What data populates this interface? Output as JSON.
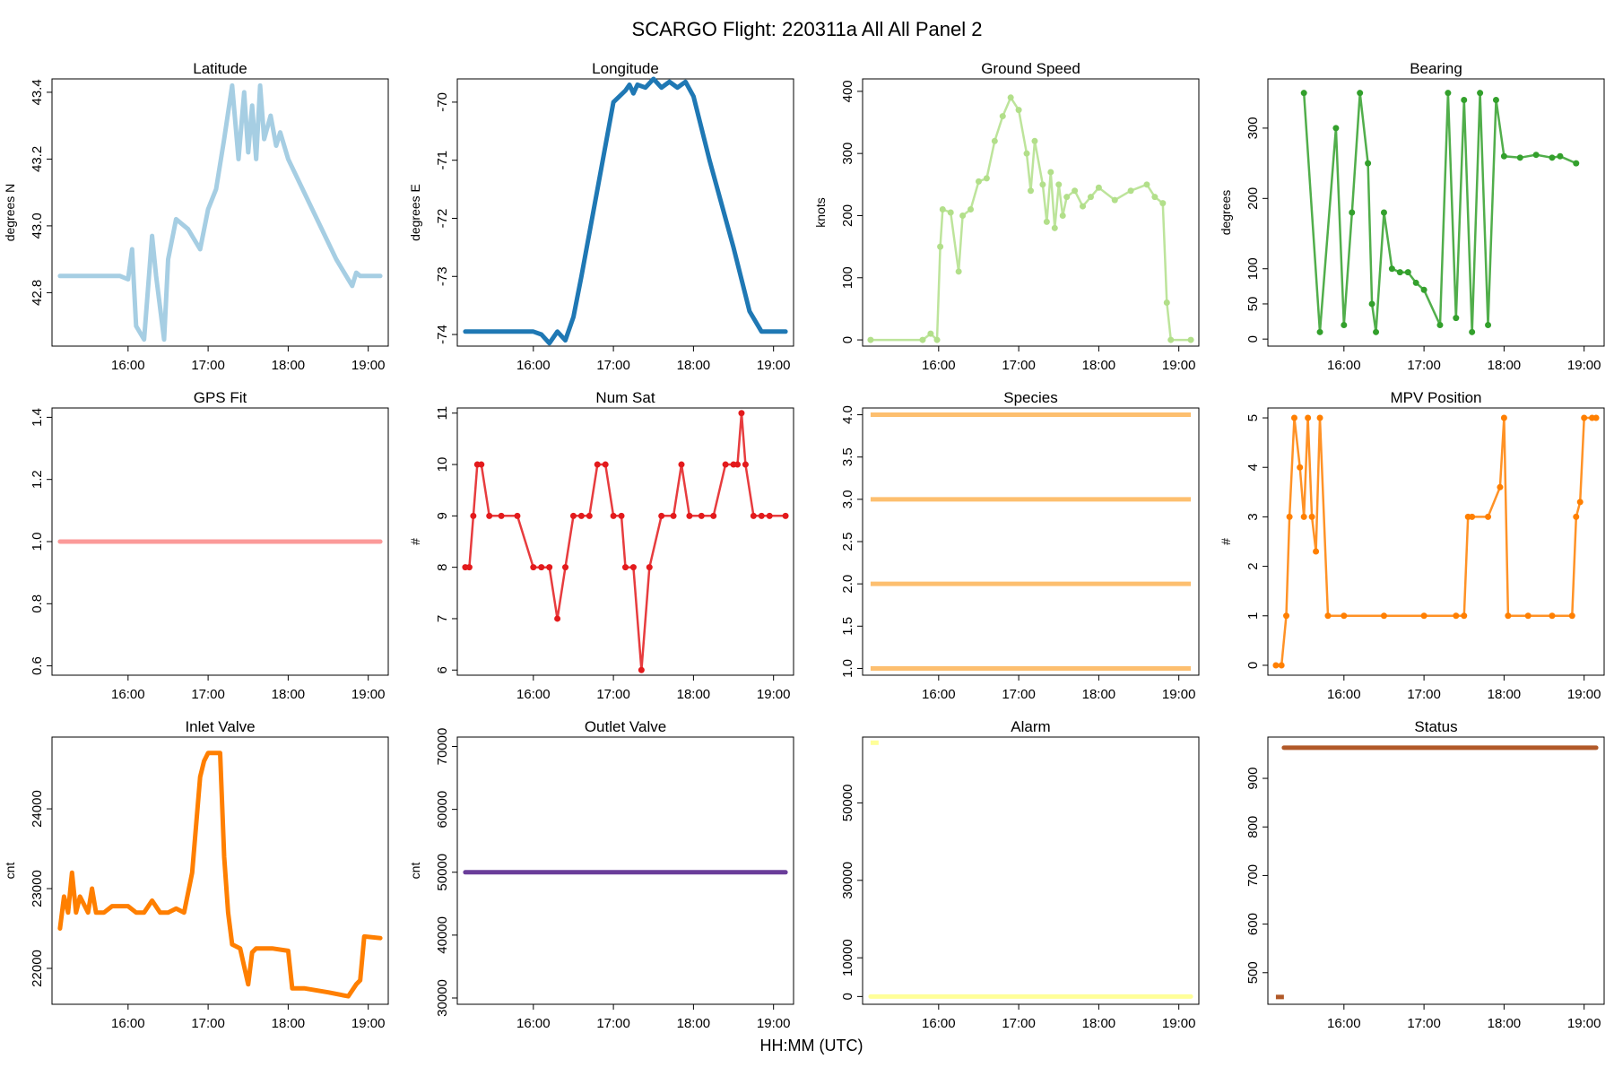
{
  "figure": {
    "title": "SCARGO Flight: 220311a  All All  Panel 2",
    "xlabel": "HH:MM (UTC)"
  },
  "chart_data": [
    {
      "id": "lat",
      "type": "line",
      "title": "Latitude",
      "ylabel": "degrees N",
      "color": "#a6cee3",
      "xlim": [
        15.05,
        19.25
      ],
      "ylim": [
        42.64,
        43.44
      ],
      "yticks": [
        42.8,
        43.0,
        43.2,
        43.4
      ],
      "ytick_labels": [
        "42.8",
        "43.0",
        "43.2",
        "43.4"
      ],
      "xticks": [
        16,
        17,
        18,
        19
      ],
      "xtick_labels": [
        "16:00",
        "17:00",
        "18:00",
        "19:00"
      ],
      "x": [
        15.15,
        15.9,
        16.0,
        16.05,
        16.1,
        16.2,
        16.3,
        16.35,
        16.45,
        16.5,
        16.6,
        16.75,
        16.9,
        17.0,
        17.1,
        17.2,
        17.3,
        17.38,
        17.45,
        17.5,
        17.55,
        17.6,
        17.65,
        17.7,
        17.78,
        17.85,
        17.9,
        18.0,
        18.3,
        18.6,
        18.8,
        18.85,
        18.9,
        19.15
      ],
      "y": [
        42.85,
        42.85,
        42.84,
        42.93,
        42.7,
        42.66,
        42.97,
        42.85,
        42.66,
        42.9,
        43.02,
        42.99,
        42.93,
        43.05,
        43.11,
        43.26,
        43.42,
        43.2,
        43.4,
        43.22,
        43.36,
        43.2,
        43.42,
        43.26,
        43.33,
        43.24,
        43.28,
        43.2,
        43.05,
        42.9,
        42.82,
        42.86,
        42.85,
        42.85
      ]
    },
    {
      "id": "lon",
      "type": "line",
      "title": "Longitude",
      "ylabel": "degrees E",
      "color": "#1f78b4",
      "xlim": [
        15.05,
        19.25
      ],
      "ylim": [
        -74.2,
        -69.6
      ],
      "yticks": [
        -74,
        -73,
        -72,
        -71,
        -70
      ],
      "ytick_labels": [
        "-74",
        "-73",
        "-72",
        "-71",
        "-70"
      ],
      "xticks": [
        16,
        17,
        18,
        19
      ],
      "xtick_labels": [
        "16:00",
        "17:00",
        "18:00",
        "19:00"
      ],
      "x": [
        15.15,
        16.0,
        16.1,
        16.2,
        16.3,
        16.4,
        16.5,
        16.6,
        16.8,
        17.0,
        17.15,
        17.2,
        17.25,
        17.3,
        17.4,
        17.5,
        17.6,
        17.7,
        17.8,
        17.9,
        18.0,
        18.2,
        18.5,
        18.7,
        18.85,
        19.15
      ],
      "y": [
        -73.95,
        -73.95,
        -74.0,
        -74.15,
        -73.95,
        -74.1,
        -73.7,
        -73.0,
        -71.5,
        -70.0,
        -69.8,
        -69.7,
        -69.85,
        -69.7,
        -69.75,
        -69.6,
        -69.75,
        -69.65,
        -69.75,
        -69.65,
        -69.9,
        -71.0,
        -72.5,
        -73.6,
        -73.95,
        -73.95
      ]
    },
    {
      "id": "gs",
      "type": "scatter",
      "title": "Ground Speed",
      "ylabel": "knots",
      "color": "#b2df8a",
      "xlim": [
        15.05,
        19.25
      ],
      "ylim": [
        -10,
        420
      ],
      "yticks": [
        0,
        100,
        200,
        300,
        400
      ],
      "ytick_labels": [
        "0",
        "100",
        "200",
        "300",
        "400"
      ],
      "xticks": [
        16,
        17,
        18,
        19
      ],
      "xtick_labels": [
        "16:00",
        "17:00",
        "18:00",
        "19:00"
      ],
      "x": [
        15.15,
        15.8,
        15.9,
        15.98,
        16.02,
        16.05,
        16.15,
        16.25,
        16.3,
        16.4,
        16.5,
        16.6,
        16.7,
        16.8,
        16.9,
        17.0,
        17.1,
        17.15,
        17.2,
        17.3,
        17.35,
        17.4,
        17.45,
        17.5,
        17.55,
        17.6,
        17.7,
        17.8,
        17.9,
        18.0,
        18.2,
        18.4,
        18.6,
        18.7,
        18.8,
        18.85,
        18.9,
        19.15
      ],
      "y": [
        0,
        0,
        10,
        0,
        150,
        210,
        205,
        110,
        200,
        210,
        255,
        260,
        320,
        360,
        390,
        370,
        300,
        240,
        320,
        250,
        190,
        270,
        180,
        250,
        200,
        230,
        240,
        215,
        230,
        245,
        225,
        240,
        250,
        230,
        220,
        60,
        0,
        0
      ]
    },
    {
      "id": "brg",
      "type": "scatter",
      "title": "Bearing",
      "ylabel": "degrees",
      "color": "#33a02c",
      "xlim": [
        15.05,
        19.25
      ],
      "ylim": [
        -10,
        370
      ],
      "yticks": [
        0,
        50,
        100,
        200,
        300
      ],
      "ytick_labels": [
        "0",
        "50",
        "100",
        "200",
        "300"
      ],
      "xticks": [
        16,
        17,
        18,
        19
      ],
      "xtick_labels": [
        "16:00",
        "17:00",
        "18:00",
        "19:00"
      ],
      "x": [
        15.5,
        15.7,
        15.9,
        16.0,
        16.1,
        16.2,
        16.3,
        16.35,
        16.4,
        16.5,
        16.6,
        16.7,
        16.8,
        16.9,
        17.0,
        17.2,
        17.3,
        17.4,
        17.5,
        17.6,
        17.7,
        17.8,
        17.9,
        18.0,
        18.2,
        18.4,
        18.6,
        18.7,
        18.9
      ],
      "y": [
        350,
        10,
        300,
        20,
        180,
        350,
        250,
        50,
        10,
        180,
        100,
        95,
        95,
        80,
        70,
        20,
        350,
        30,
        340,
        10,
        350,
        20,
        340,
        260,
        258,
        262,
        258,
        260,
        250
      ]
    },
    {
      "id": "gps",
      "type": "line",
      "title": "GPS Fit",
      "ylabel": "",
      "color": "#fb9a99",
      "xlim": [
        15.05,
        19.25
      ],
      "ylim": [
        0.57,
        1.43
      ],
      "yticks": [
        0.6,
        0.8,
        1.0,
        1.2,
        1.4
      ],
      "ytick_labels": [
        "0.6",
        "0.8",
        "1.0",
        "1.2",
        "1.4"
      ],
      "xticks": [
        16,
        17,
        18,
        19
      ],
      "xtick_labels": [
        "16:00",
        "17:00",
        "18:00",
        "19:00"
      ],
      "x": [
        15.15,
        19.15
      ],
      "y": [
        1.0,
        1.0
      ]
    },
    {
      "id": "nsat",
      "type": "scatter",
      "title": "Num Sat",
      "ylabel": "#",
      "color": "#e31a1c",
      "xlim": [
        15.05,
        19.25
      ],
      "ylim": [
        5.9,
        11.1
      ],
      "yticks": [
        6,
        7,
        8,
        9,
        10,
        11
      ],
      "ytick_labels": [
        "6",
        "7",
        "8",
        "9",
        "10",
        "11"
      ],
      "xticks": [
        16,
        17,
        18,
        19
      ],
      "xtick_labels": [
        "16:00",
        "17:00",
        "18:00",
        "19:00"
      ],
      "x": [
        15.15,
        15.2,
        15.25,
        15.3,
        15.35,
        15.45,
        15.6,
        15.8,
        16.0,
        16.1,
        16.2,
        16.3,
        16.4,
        16.5,
        16.6,
        16.7,
        16.8,
        16.9,
        17.0,
        17.1,
        17.15,
        17.25,
        17.35,
        17.45,
        17.6,
        17.75,
        17.85,
        17.95,
        18.1,
        18.25,
        18.4,
        18.5,
        18.55,
        18.6,
        18.65,
        18.75,
        18.85,
        18.95,
        19.15
      ],
      "y": [
        8,
        8,
        9,
        10,
        10,
        9,
        9,
        9,
        8,
        8,
        8,
        7,
        8,
        9,
        9,
        9,
        10,
        10,
        9,
        9,
        8,
        8,
        6,
        8,
        9,
        9,
        10,
        9,
        9,
        9,
        10,
        10,
        10,
        11,
        10,
        9,
        9,
        9,
        9
      ]
    },
    {
      "id": "spc",
      "type": "hlines",
      "title": "Species",
      "ylabel": "",
      "color": "#fdbf6f",
      "xlim": [
        15.05,
        19.25
      ],
      "ylim": [
        0.92,
        4.08
      ],
      "yticks": [
        1.0,
        1.5,
        2.0,
        2.5,
        3.0,
        3.5,
        4.0
      ],
      "ytick_labels": [
        "1.0",
        "1.5",
        "2.0",
        "2.5",
        "3.0",
        "3.5",
        "4.0"
      ],
      "xticks": [
        16,
        17,
        18,
        19
      ],
      "xtick_labels": [
        "16:00",
        "17:00",
        "18:00",
        "19:00"
      ],
      "levels": [
        1,
        2,
        3,
        4
      ],
      "x": [
        15.15,
        19.15
      ]
    },
    {
      "id": "mpv",
      "type": "scatter",
      "title": "MPV Position",
      "ylabel": "#",
      "color": "#ff7f00",
      "xlim": [
        15.05,
        19.25
      ],
      "ylim": [
        -0.2,
        5.2
      ],
      "yticks": [
        0,
        1,
        2,
        3,
        4,
        5
      ],
      "ytick_labels": [
        "0",
        "1",
        "2",
        "3",
        "4",
        "5"
      ],
      "xticks": [
        16,
        17,
        18,
        19
      ],
      "xtick_labels": [
        "16:00",
        "17:00",
        "18:00",
        "19:00"
      ],
      "x": [
        15.15,
        15.22,
        15.28,
        15.32,
        15.38,
        15.45,
        15.5,
        15.55,
        15.6,
        15.65,
        15.7,
        15.8,
        16.0,
        16.5,
        17.0,
        17.4,
        17.5,
        17.55,
        17.6,
        17.8,
        17.95,
        18.0,
        18.05,
        18.3,
        18.6,
        18.85,
        18.9,
        18.95,
        19.0,
        19.1,
        19.15
      ],
      "y": [
        0,
        0,
        1,
        3,
        5,
        4,
        3,
        5,
        3,
        2.3,
        5,
        1,
        1,
        1,
        1,
        1,
        1,
        3,
        3,
        3,
        3.6,
        5,
        1,
        1,
        1,
        1,
        3,
        3.3,
        5,
        5,
        5
      ]
    },
    {
      "id": "inv",
      "type": "line",
      "title": "Inlet Valve",
      "ylabel": "cnt",
      "color": "#ff7f00",
      "xlim": [
        15.05,
        19.25
      ],
      "ylim": [
        21550,
        24900
      ],
      "yticks": [
        22000,
        23000,
        24000
      ],
      "ytick_labels": [
        "22000",
        "23000",
        "24000"
      ],
      "xticks": [
        16,
        17,
        18,
        19
      ],
      "xtick_labels": [
        "16:00",
        "17:00",
        "18:00",
        "19:00"
      ],
      "x": [
        15.15,
        15.2,
        15.25,
        15.3,
        15.35,
        15.4,
        15.5,
        15.55,
        15.6,
        15.7,
        15.8,
        16.0,
        16.1,
        16.2,
        16.3,
        16.4,
        16.5,
        16.6,
        16.7,
        16.8,
        16.9,
        16.95,
        17.0,
        17.15,
        17.2,
        17.25,
        17.3,
        17.4,
        17.5,
        17.55,
        17.6,
        17.8,
        18.0,
        18.05,
        18.2,
        18.5,
        18.75,
        18.85,
        18.9,
        18.95,
        19.15
      ],
      "y": [
        22500,
        22900,
        22700,
        23200,
        22700,
        22900,
        22700,
        23000,
        22700,
        22700,
        22780,
        22780,
        22700,
        22700,
        22850,
        22700,
        22700,
        22750,
        22700,
        23200,
        24400,
        24600,
        24700,
        24700,
        23400,
        22700,
        22300,
        22250,
        21800,
        22200,
        22250,
        22250,
        22220,
        21750,
        21750,
        21700,
        21650,
        21800,
        21850,
        22400,
        22380
      ]
    },
    {
      "id": "outv",
      "type": "line",
      "title": "Outlet Valve",
      "ylabel": "cnt",
      "color": "#6a3d9a",
      "xlim": [
        15.05,
        19.25
      ],
      "ylim": [
        29000,
        71500
      ],
      "yticks": [
        30000,
        40000,
        50000,
        60000,
        70000
      ],
      "ytick_labels": [
        "30000",
        "40000",
        "50000",
        "60000",
        "70000"
      ],
      "xticks": [
        16,
        17,
        18,
        19
      ],
      "xtick_labels": [
        "16:00",
        "17:00",
        "18:00",
        "19:00"
      ],
      "x": [
        15.15,
        19.15
      ],
      "y": [
        50000,
        50000
      ]
    },
    {
      "id": "alarm",
      "type": "line",
      "title": "Alarm",
      "ylabel": "",
      "color": "#ffff99",
      "xlim": [
        15.05,
        19.25
      ],
      "ylim": [
        -2000,
        67000
      ],
      "yticks": [
        0,
        10000,
        30000,
        50000
      ],
      "ytick_labels": [
        "0",
        "10000",
        "30000",
        "50000"
      ],
      "xticks": [
        16,
        17,
        18,
        19
      ],
      "xtick_labels": [
        "16:00",
        "17:00",
        "18:00",
        "19:00"
      ],
      "x": [
        15.15,
        19.15
      ],
      "y": [
        0,
        0
      ],
      "extra_x": [
        15.15,
        15.25
      ],
      "extra_y": [
        65535,
        65535
      ]
    },
    {
      "id": "status",
      "type": "line",
      "title": "Status",
      "ylabel": "",
      "color": "#b15928",
      "xlim": [
        15.05,
        19.25
      ],
      "ylim": [
        435,
        985
      ],
      "yticks": [
        500,
        600,
        700,
        800,
        900
      ],
      "ytick_labels": [
        "500",
        "600",
        "700",
        "800",
        "900"
      ],
      "xticks": [
        16,
        17,
        18,
        19
      ],
      "xtick_labels": [
        "16:00",
        "17:00",
        "18:00",
        "19:00"
      ],
      "x": [
        15.25,
        19.15
      ],
      "y": [
        963,
        963
      ],
      "extra_x": [
        15.15,
        15.25
      ],
      "extra_y": [
        450,
        450
      ]
    }
  ]
}
